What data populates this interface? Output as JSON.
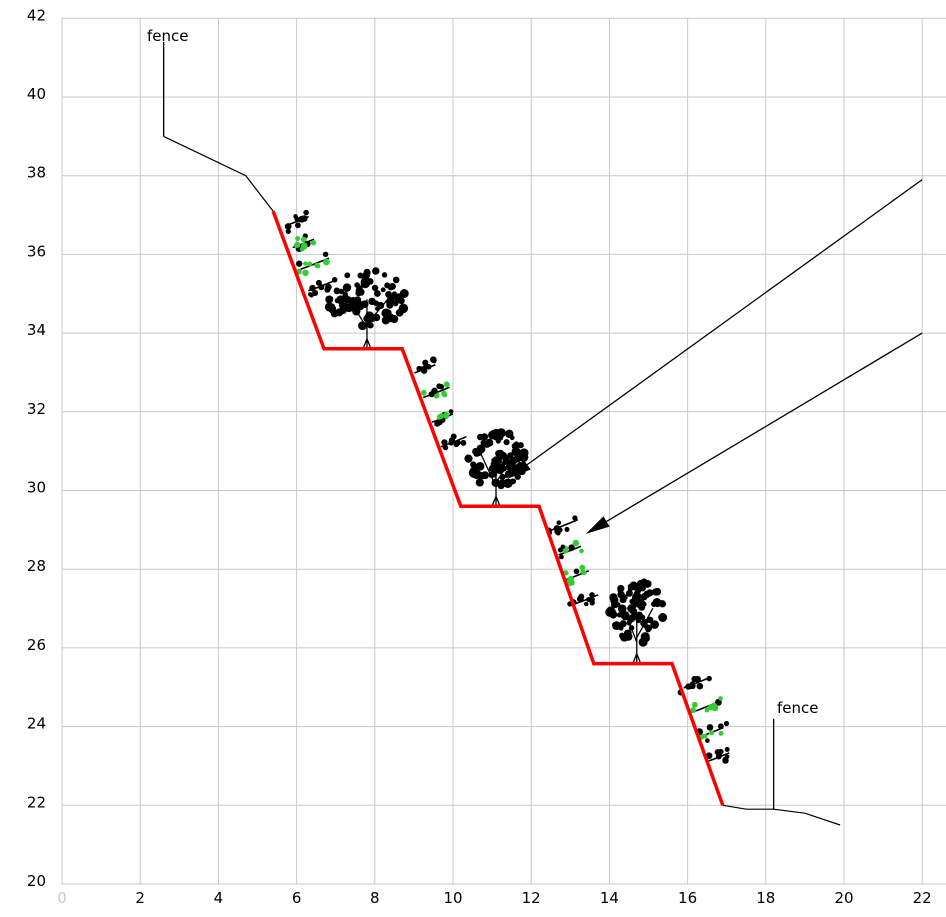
{
  "axes": {
    "x_ticks": [
      "0",
      "2",
      "4",
      "6",
      "8",
      "10",
      "12",
      "14",
      "16",
      "18",
      "20",
      "22"
    ],
    "y_ticks": [
      "20",
      "22",
      "24",
      "26",
      "28",
      "30",
      "32",
      "34",
      "36",
      "38",
      "40",
      "42"
    ],
    "x_range": [
      0,
      22
    ],
    "y_range": [
      20,
      42
    ],
    "grid": true
  },
  "colors": {
    "slope": "#ff0000",
    "vegetation_accent": "#33cc33",
    "grid": "#c8c8c8",
    "ink": "#000000"
  },
  "annotations": [
    {
      "text": "fence"
    },
    {
      "text": "fence"
    }
  ],
  "profile": {
    "ground_left": [
      [
        2.6,
        39.0
      ],
      [
        4.7,
        38.0
      ],
      [
        5.4,
        37.1
      ]
    ],
    "terraces": [
      [
        5.4,
        37.1
      ],
      [
        6.7,
        33.6
      ],
      [
        8.7,
        33.6
      ],
      [
        10.2,
        29.6
      ],
      [
        12.2,
        29.6
      ],
      [
        13.6,
        25.6
      ],
      [
        15.6,
        25.6
      ],
      [
        16.9,
        22.0
      ]
    ],
    "ground_right": [
      [
        16.9,
        22.0
      ],
      [
        17.5,
        21.9
      ],
      [
        18.2,
        21.9
      ],
      [
        19.0,
        21.8
      ],
      [
        19.9,
        21.5
      ]
    ]
  },
  "fence_posts": [
    {
      "x": 2.6,
      "y_base": 39.0,
      "y_top": 41.4
    },
    {
      "x": 18.2,
      "y_base": 21.9,
      "y_top": 24.2
    }
  ],
  "trees": [
    {
      "x": 7.8,
      "y_base": 33.6,
      "height": 2.1,
      "width": 2.2
    },
    {
      "x": 11.1,
      "y_base": 29.6,
      "height": 2.0,
      "width": 1.6
    },
    {
      "x": 14.7,
      "y_base": 25.6,
      "height": 2.2,
      "width": 1.5
    }
  ],
  "shrub_slopes": [
    {
      "x_top": 5.6,
      "y_top": 37.0,
      "x_bot": 6.4,
      "y_bot": 34.8
    },
    {
      "x_top": 8.9,
      "y_top": 33.3,
      "x_bot": 9.8,
      "y_bot": 30.8
    },
    {
      "x_top": 12.4,
      "y_top": 29.3,
      "x_bot": 13.2,
      "y_bot": 26.8
    },
    {
      "x_top": 15.8,
      "y_top": 25.3,
      "x_bot": 16.6,
      "y_bot": 22.8
    }
  ],
  "leaders": [
    {
      "from": [
        22.0,
        37.9
      ],
      "to": [
        11.4,
        30.3
      ]
    },
    {
      "from": [
        22.0,
        34.0
      ],
      "to": [
        13.4,
        28.9
      ]
    }
  ]
}
